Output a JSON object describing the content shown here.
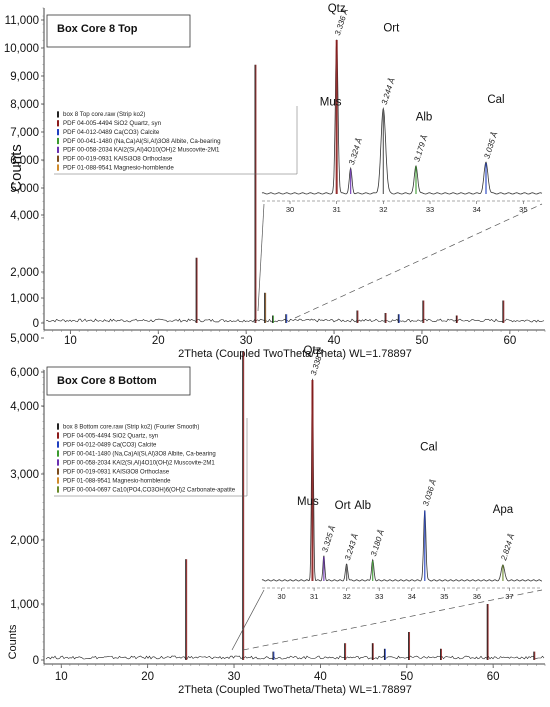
{
  "chart_data": [
    {
      "type": "line",
      "title": "Box Core 8 Top",
      "xlabel": "2Theta (Coupled TwoTheta/Theta) WL=1.78897",
      "ylabel": "Counts",
      "xlim": [
        7,
        64
      ],
      "x_ticks": [
        10,
        20,
        30,
        40,
        50,
        60
      ],
      "y_ticks": [
        {
          "value": 0,
          "label": "0"
        },
        {
          "value": 1000,
          "label": "1,000"
        },
        {
          "value": 2000,
          "label": "2,000"
        },
        {
          "value": 4000,
          "label": "4,000"
        },
        {
          "value": 5000,
          "label": "5,000"
        },
        {
          "value": 6000,
          "label": "6,000"
        },
        {
          "value": 7000,
          "label": "7,000"
        },
        {
          "value": 8000,
          "label": "8,000"
        },
        {
          "value": 9000,
          "label": "9,000"
        },
        {
          "value": 10000,
          "label": "10,000"
        },
        {
          "value": 11000,
          "label": "11,000"
        }
      ],
      "legend": [
        {
          "label": "box 8 Top core.raw (Strip ko2)",
          "color": "#222222"
        },
        {
          "label": "PDF 04-005-4494 SiO2 Quartz, syn",
          "color": "#8b1a1a"
        },
        {
          "label": "PDF 04-012-0489 Ca(CO3) Calcite",
          "color": "#1f3fbf"
        },
        {
          "label": "PDF 00-041-1480 (Na,Ca)Al(Si,Al)3O8 Albite, Ca-bearing",
          "color": "#3a9a2e"
        },
        {
          "label": "PDF 00-058-2034 KAl2(Si,Al)4O10(OH)2 Muscovite-2M1",
          "color": "#6a2fb0"
        },
        {
          "label": "PDF 00-019-0931 KAlSi3O8 Orthoclase",
          "color": "#7a4a1a"
        },
        {
          "label": "PDF 01-088-9541 Magnesio-hornblende",
          "color": "#d08a2a"
        }
      ],
      "peaks": [
        {
          "x": 24.3,
          "y": 2500,
          "color": "#8b1a1a"
        },
        {
          "x": 31.0,
          "y": 9400,
          "color": "#8b1a1a"
        },
        {
          "x": 32.1,
          "y": 1200,
          "color": "#7a4a1a"
        },
        {
          "x": 33.0,
          "y": 300,
          "color": "#3a9a2e"
        },
        {
          "x": 34.5,
          "y": 350,
          "color": "#1f3fbf"
        },
        {
          "x": 42.6,
          "y": 500,
          "color": "#8b1a1a"
        },
        {
          "x": 45.8,
          "y": 400,
          "color": "#8b1a1a"
        },
        {
          "x": 47.3,
          "y": 350,
          "color": "#1f3fbf"
        },
        {
          "x": 50.1,
          "y": 900,
          "color": "#8b1a1a"
        },
        {
          "x": 53.9,
          "y": 300,
          "color": "#8b1a1a"
        },
        {
          "x": 59.2,
          "y": 900,
          "color": "#8b1a1a"
        }
      ],
      "inset": {
        "x_ticks": [
          30,
          31,
          32,
          33,
          34,
          35
        ],
        "peaks": [
          {
            "x": 31.0,
            "name": "Qtz",
            "d": "3.336 Å",
            "color": "#8b1a1a"
          },
          {
            "x": 31.3,
            "name": "Mus",
            "d": "3.324 Å",
            "color": "#6a2fb0"
          },
          {
            "x": 32.0,
            "name": "Ort",
            "d": "3.244 Å",
            "color": "#555555"
          },
          {
            "x": 32.7,
            "name": "Alb",
            "d": "3.179 Å",
            "color": "#3a9a2e"
          },
          {
            "x": 34.2,
            "name": "Cal",
            "d": "3.035 Å",
            "color": "#1f3fbf"
          }
        ]
      }
    },
    {
      "type": "line",
      "title": "Box Core 8 Bottom",
      "xlabel": "2Theta (Coupled TwoTheta/Theta) WL=1.78897",
      "ylabel": "Counts",
      "xlim": [
        8,
        66
      ],
      "x_ticks": [
        10,
        20,
        30,
        40,
        50,
        60
      ],
      "y_ticks": [
        {
          "value": 0,
          "label": "0"
        },
        {
          "value": 1000,
          "label": "1,000"
        },
        {
          "value": 2000,
          "label": "2,000"
        },
        {
          "value": 3000,
          "label": "3,000"
        },
        {
          "value": 4000,
          "label": "4,000"
        },
        {
          "value": 5000,
          "label": "5,000"
        },
        {
          "value": 6000,
          "label": "6,000"
        }
      ],
      "legend": [
        {
          "label": "box 8 Bottom core.raw (Strip ko2) (Fourier Smooth)",
          "color": "#222222"
        },
        {
          "label": "PDF 04-005-4494 SiO2 Quartz, syn",
          "color": "#8b1a1a"
        },
        {
          "label": "PDF 04-012-0489 Ca(CO3) Calcite",
          "color": "#1f3fbf"
        },
        {
          "label": "PDF 00-041-1480 (Na,Ca)Al(Si,Al)3O8 Albite, Ca-bearing",
          "color": "#3a9a2e"
        },
        {
          "label": "PDF 00-058-2034 KAl2(Si,Al)4O10(OH)2 Muscovite-2M1",
          "color": "#6a2fb0"
        },
        {
          "label": "PDF 00-019-0931 KAlSi3O8 Orthoclase",
          "color": "#7a4a1a"
        },
        {
          "label": "PDF 01-088-9541 Magnesio-hornblende",
          "color": "#d08a2a"
        },
        {
          "label": "PDF 00-004-0697 Ca10(PO4,CO3OH)6(OH)2 Carbonate-apatite",
          "color": "#6a8a2a"
        }
      ],
      "peaks": [
        {
          "x": 24.4,
          "y": 1700,
          "color": "#8b1a1a"
        },
        {
          "x": 31.0,
          "y": 5400,
          "color": "#8b1a1a"
        },
        {
          "x": 34.5,
          "y": 150,
          "color": "#1f3fbf"
        },
        {
          "x": 42.8,
          "y": 300,
          "color": "#8b1a1a"
        },
        {
          "x": 46.0,
          "y": 300,
          "color": "#8b1a1a"
        },
        {
          "x": 47.4,
          "y": 200,
          "color": "#1f3fbf"
        },
        {
          "x": 50.2,
          "y": 500,
          "color": "#8b1a1a"
        },
        {
          "x": 53.9,
          "y": 200,
          "color": "#8b1a1a"
        },
        {
          "x": 59.3,
          "y": 1000,
          "color": "#8b1a1a"
        },
        {
          "x": 64.7,
          "y": 150,
          "color": "#8b1a1a"
        }
      ],
      "inset": {
        "x_ticks": [
          30,
          31,
          32,
          33,
          34,
          35,
          36,
          37
        ],
        "peaks": [
          {
            "x": 30.95,
            "name": "Qtz",
            "d": "3.338 Å",
            "color": "#8b1a1a"
          },
          {
            "x": 31.3,
            "name": "Mus",
            "d": "3.325 Å",
            "color": "#6a2fb0"
          },
          {
            "x": 32.0,
            "name": "Ort",
            "d": "3.243 Å",
            "color": "#555555"
          },
          {
            "x": 32.8,
            "name": "Alb",
            "d": "3.180 Å",
            "color": "#3a9a2e"
          },
          {
            "x": 34.4,
            "name": "Cal",
            "d": "3.036 Å",
            "color": "#1f3fbf"
          },
          {
            "x": 36.8,
            "name": "Apa",
            "d": "2.824 Å",
            "color": "#6a8a2a"
          }
        ]
      }
    }
  ]
}
